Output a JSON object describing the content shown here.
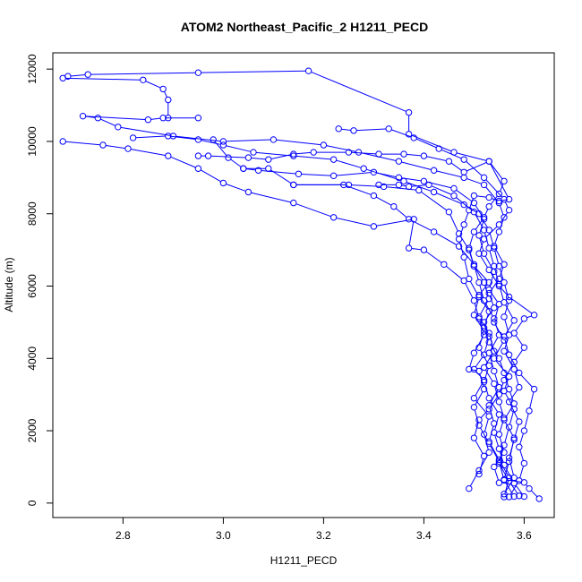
{
  "chart_data": {
    "type": "scatter",
    "title": "ATOM2 Northeast_Pacific_2 H1211_PECD",
    "xlabel": "H1211_PECD",
    "ylabel": "Altitude (m)",
    "xlim": [
      2.66,
      3.66
    ],
    "ylim": [
      -400,
      12450
    ],
    "xticks": [
      2.8,
      3.0,
      3.2,
      3.4,
      3.6
    ],
    "xtick_labels": [
      "2.8",
      "3.0",
      "3.2",
      "3.4",
      "3.6"
    ],
    "yticks": [
      0,
      2000,
      4000,
      6000,
      8000,
      10000,
      12000
    ],
    "ytick_labels": [
      "0",
      "2000",
      "4000",
      "6000",
      "8000",
      "10000",
      "12000"
    ],
    "connected": true,
    "grid": false,
    "color": "#0000ff",
    "series": [
      {
        "points": [
          [
            3.63,
            120
          ],
          [
            3.61,
            400
          ],
          [
            3.6,
            570
          ],
          [
            3.56,
            650
          ],
          [
            3.57,
            1150
          ],
          [
            3.58,
            1800
          ],
          [
            3.56,
            2300
          ],
          [
            3.58,
            2750
          ],
          [
            3.57,
            3150
          ],
          [
            3.56,
            3600
          ],
          [
            3.55,
            4000
          ],
          [
            3.53,
            4450
          ],
          [
            3.52,
            4850
          ],
          [
            3.53,
            5300
          ],
          [
            3.51,
            5750
          ],
          [
            3.53,
            6100
          ],
          [
            3.5,
            6550
          ],
          [
            3.49,
            7000
          ],
          [
            3.47,
            7450
          ],
          [
            3.45,
            8050
          ],
          [
            3.39,
            8650
          ],
          [
            3.32,
            8750
          ],
          [
            3.25,
            8800
          ],
          [
            3.14,
            8800
          ]
        ]
      },
      {
        "points": [
          [
            3.6,
            180
          ],
          [
            3.58,
            550
          ],
          [
            3.56,
            1050
          ],
          [
            3.55,
            1500
          ],
          [
            3.54,
            1950
          ],
          [
            3.55,
            2450
          ],
          [
            3.53,
            2900
          ],
          [
            3.52,
            3350
          ],
          [
            3.53,
            3800
          ],
          [
            3.51,
            4300
          ],
          [
            3.52,
            4750
          ],
          [
            3.5,
            5200
          ],
          [
            3.51,
            5700
          ],
          [
            3.49,
            6200
          ],
          [
            3.48,
            6800
          ],
          [
            3.47,
            7300
          ],
          [
            3.48,
            7700
          ],
          [
            3.49,
            8100
          ],
          [
            3.5,
            8500
          ],
          [
            3.53,
            8450
          ],
          [
            3.55,
            8350
          ],
          [
            3.57,
            8400
          ],
          [
            3.53,
            9450
          ],
          [
            3.48,
            9150
          ],
          [
            3.45,
            9450
          ],
          [
            3.4,
            9600
          ],
          [
            3.36,
            9650
          ],
          [
            3.31,
            9650
          ],
          [
            3.25,
            9700
          ],
          [
            3.18,
            9700
          ],
          [
            3.14,
            9650
          ],
          [
            3.09,
            9500
          ],
          [
            3.05,
            9550
          ],
          [
            2.97,
            9600
          ],
          [
            2.95,
            9600
          ]
        ]
      },
      {
        "points": [
          [
            3.59,
            200
          ],
          [
            3.57,
            600
          ],
          [
            3.55,
            1100
          ],
          [
            3.56,
            1600
          ],
          [
            3.57,
            2100
          ],
          [
            3.58,
            2600
          ],
          [
            3.56,
            3100
          ],
          [
            3.57,
            3500
          ],
          [
            3.54,
            4000
          ],
          [
            3.56,
            4500
          ],
          [
            3.54,
            5000
          ],
          [
            3.55,
            5500
          ],
          [
            3.53,
            5900
          ],
          [
            3.54,
            6400
          ],
          [
            3.52,
            6900
          ],
          [
            3.51,
            7400
          ],
          [
            3.52,
            7850
          ],
          [
            3.5,
            8300
          ],
          [
            3.46,
            8700
          ],
          [
            3.4,
            8900
          ],
          [
            3.35,
            9000
          ],
          [
            3.3,
            9150
          ],
          [
            3.22,
            9050
          ],
          [
            3.15,
            9100
          ],
          [
            3.07,
            9200
          ],
          [
            3.04,
            9250
          ],
          [
            3.01,
            9550
          ],
          [
            2.98,
            10050
          ]
        ]
      },
      {
        "points": [
          [
            3.56,
            250
          ],
          [
            3.58,
            700
          ],
          [
            3.57,
            1250
          ],
          [
            3.58,
            1750
          ],
          [
            3.59,
            2250
          ],
          [
            3.57,
            2800
          ],
          [
            3.59,
            3200
          ],
          [
            3.58,
            3700
          ],
          [
            3.56,
            4200
          ],
          [
            3.57,
            4650
          ],
          [
            3.56,
            5150
          ],
          [
            3.57,
            5600
          ],
          [
            3.56,
            6100
          ],
          [
            3.55,
            6550
          ],
          [
            3.54,
            7050
          ],
          [
            3.53,
            7550
          ],
          [
            3.51,
            8000
          ],
          [
            3.48,
            8250
          ],
          [
            3.42,
            8600
          ],
          [
            3.36,
            8900
          ],
          [
            3.28,
            9250
          ],
          [
            3.22,
            9500
          ],
          [
            3.14,
            9600
          ],
          [
            3.06,
            9700
          ],
          [
            3.0,
            9900
          ],
          [
            2.95,
            10050
          ],
          [
            2.89,
            10150
          ],
          [
            2.82,
            10100
          ]
        ]
      },
      {
        "points": [
          [
            3.49,
            400
          ],
          [
            3.51,
            900
          ],
          [
            3.53,
            1400
          ],
          [
            3.52,
            1900
          ],
          [
            3.53,
            2400
          ],
          [
            3.5,
            2900
          ],
          [
            3.52,
            3400
          ],
          [
            3.5,
            3700
          ],
          [
            3.52,
            4100
          ],
          [
            3.53,
            4600
          ],
          [
            3.52,
            5000
          ],
          [
            3.54,
            5400
          ],
          [
            3.53,
            5800
          ],
          [
            3.55,
            6200
          ],
          [
            3.56,
            6600
          ],
          [
            3.54,
            7100
          ],
          [
            3.55,
            7500
          ],
          [
            3.56,
            7900
          ],
          [
            3.55,
            8300
          ],
          [
            3.52,
            8800
          ],
          [
            3.48,
            9000
          ],
          [
            3.42,
            9200
          ],
          [
            3.35,
            9450
          ],
          [
            3.27,
            9700
          ],
          [
            3.2,
            9900
          ],
          [
            3.1,
            10050
          ],
          [
            3.0,
            10000
          ],
          [
            2.9,
            10150
          ],
          [
            2.79,
            10400
          ],
          [
            2.75,
            10650
          ],
          [
            2.72,
            10700
          ],
          [
            2.85,
            10600
          ],
          [
            2.88,
            10650
          ],
          [
            2.95,
            10650
          ]
        ]
      },
      {
        "points": [
          [
            3.51,
            800
          ],
          [
            3.52,
            1300
          ],
          [
            3.5,
            1800
          ],
          [
            3.51,
            2300
          ],
          [
            3.53,
            2600
          ],
          [
            3.55,
            3000
          ],
          [
            3.56,
            3400
          ],
          [
            3.58,
            3900
          ],
          [
            3.6,
            4300
          ],
          [
            3.58,
            4700
          ],
          [
            3.6,
            5100
          ],
          [
            3.62,
            5200
          ],
          [
            3.57,
            5700
          ],
          [
            3.55,
            6000
          ],
          [
            3.53,
            6450
          ],
          [
            3.51,
            6900
          ],
          [
            3.52,
            7300
          ],
          [
            3.55,
            7700
          ],
          [
            3.57,
            8100
          ],
          [
            3.56,
            8400
          ],
          [
            3.52,
            9000
          ],
          [
            3.48,
            9500
          ],
          [
            3.43,
            9800
          ],
          [
            3.38,
            10100
          ],
          [
            3.33,
            10350
          ],
          [
            3.26,
            10300
          ],
          [
            3.23,
            10350
          ]
        ]
      },
      {
        "points": [
          [
            3.57,
            170
          ],
          [
            3.59,
            620
          ],
          [
            3.6,
            1100
          ],
          [
            3.59,
            1550
          ],
          [
            3.6,
            2000
          ],
          [
            3.61,
            2550
          ],
          [
            3.62,
            3150
          ],
          [
            3.59,
            3600
          ],
          [
            3.57,
            4100
          ],
          [
            3.56,
            4600
          ],
          [
            3.58,
            5050
          ],
          [
            3.56,
            5550
          ],
          [
            3.55,
            6050
          ],
          [
            3.54,
            6550
          ],
          [
            3.53,
            7050
          ],
          [
            3.52,
            7550
          ],
          [
            3.5,
            8050
          ],
          [
            3.46,
            8500
          ],
          [
            3.41,
            8800
          ],
          [
            3.37,
            8750
          ],
          [
            3.35,
            8800
          ],
          [
            3.31,
            8800
          ]
        ]
      },
      {
        "points": [
          [
            3.58,
            180
          ],
          [
            3.56,
            630
          ],
          [
            3.55,
            1150
          ],
          [
            3.53,
            1650
          ],
          [
            3.51,
            2150
          ],
          [
            3.5,
            2650
          ],
          [
            3.52,
            3150
          ],
          [
            3.51,
            3650
          ],
          [
            3.49,
            3700
          ],
          [
            3.5,
            4150
          ],
          [
            3.52,
            4650
          ],
          [
            3.51,
            5100
          ],
          [
            3.5,
            5600
          ],
          [
            3.48,
            6150
          ],
          [
            3.44,
            6600
          ],
          [
            3.4,
            7000
          ],
          [
            3.37,
            7050
          ],
          [
            3.38,
            7850
          ],
          [
            3.3,
            7650
          ],
          [
            3.22,
            7900
          ],
          [
            3.14,
            8300
          ],
          [
            3.05,
            8600
          ],
          [
            3.0,
            8850
          ],
          [
            2.95,
            9250
          ],
          [
            2.89,
            9600
          ],
          [
            2.81,
            9800
          ],
          [
            2.76,
            9900
          ],
          [
            2.68,
            10000
          ]
        ]
      },
      {
        "points": [
          [
            3.56,
            170
          ],
          [
            3.57,
            700
          ],
          [
            3.55,
            1200
          ],
          [
            3.53,
            1700
          ],
          [
            3.54,
            2200
          ],
          [
            3.53,
            2700
          ],
          [
            3.55,
            3200
          ],
          [
            3.54,
            3650
          ],
          [
            3.53,
            4150
          ],
          [
            3.55,
            4650
          ],
          [
            3.54,
            5100
          ],
          [
            3.52,
            5600
          ],
          [
            3.51,
            6100
          ],
          [
            3.5,
            6600
          ],
          [
            3.47,
            7100
          ],
          [
            3.42,
            7500
          ],
          [
            3.37,
            7850
          ],
          [
            3.34,
            8200
          ],
          [
            3.3,
            8500
          ],
          [
            3.24,
            8800
          ],
          [
            3.14,
            8800
          ],
          [
            3.09,
            9250
          ],
          [
            3.04,
            9250
          ]
        ]
      },
      {
        "points": [
          [
            3.55,
            560
          ],
          [
            3.54,
            1000
          ],
          [
            3.56,
            1400
          ],
          [
            3.55,
            1900
          ],
          [
            3.56,
            2350
          ],
          [
            3.55,
            2800
          ],
          [
            3.54,
            3300
          ],
          [
            3.52,
            3750
          ],
          [
            3.54,
            4200
          ],
          [
            3.53,
            4700
          ],
          [
            3.51,
            5150
          ],
          [
            3.53,
            5650
          ],
          [
            3.52,
            6100
          ],
          [
            3.5,
            6550
          ],
          [
            3.49,
            7050
          ],
          [
            3.5,
            7500
          ],
          [
            3.52,
            7900
          ],
          [
            3.53,
            8200
          ],
          [
            3.55,
            8550
          ],
          [
            3.56,
            8900
          ],
          [
            3.53,
            9450
          ],
          [
            3.46,
            9700
          ],
          [
            3.37,
            10200
          ],
          [
            3.37,
            10800
          ],
          [
            3.17,
            11950
          ],
          [
            2.95,
            11900
          ],
          [
            2.73,
            11850
          ],
          [
            2.69,
            11800
          ],
          [
            2.68,
            11750
          ],
          [
            2.84,
            11700
          ],
          [
            2.88,
            11450
          ],
          [
            2.89,
            11150
          ],
          [
            2.89,
            10650
          ]
        ]
      }
    ]
  }
}
